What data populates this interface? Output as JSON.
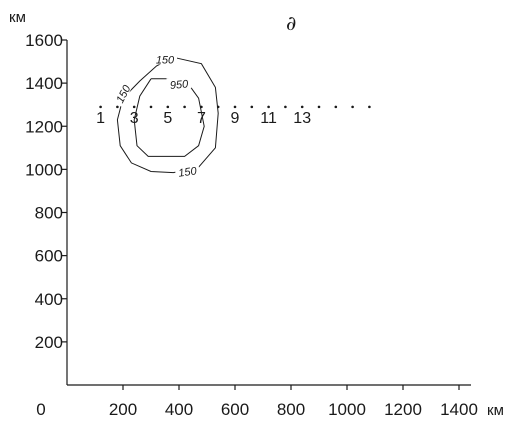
{
  "chart_data": {
    "type": "scatter",
    "title": "",
    "panel_label": "∂",
    "x_unit": "км",
    "y_unit": "км",
    "xlim": [
      0,
      1400
    ],
    "ylim": [
      0,
      1600
    ],
    "x_ticks": [
      {
        "value": 0,
        "label": "0"
      },
      {
        "value": 200,
        "label": "200"
      },
      {
        "value": 400,
        "label": "400"
      },
      {
        "value": 600,
        "label": "600"
      },
      {
        "value": 800,
        "label": "800"
      },
      {
        "value": 1000,
        "label": "1000"
      },
      {
        "value": 1200,
        "label": "1200"
      },
      {
        "value": 1400,
        "label": "1400"
      }
    ],
    "y_ticks": [
      {
        "value": 200,
        "label": "200"
      },
      {
        "value": 400,
        "label": "400"
      },
      {
        "value": 600,
        "label": "600"
      },
      {
        "value": 800,
        "label": "800"
      },
      {
        "value": 1000,
        "label": "1000"
      },
      {
        "value": 1200,
        "label": "1200"
      },
      {
        "value": 1400,
        "label": "1400"
      },
      {
        "value": 1600,
        "label": "1600"
      }
    ],
    "grid": false,
    "points": [
      {
        "x": 120,
        "y": 1160,
        "label": "1"
      },
      {
        "x": 180,
        "y": 1160,
        "label": ""
      },
      {
        "x": 240,
        "y": 1160,
        "label": "3"
      },
      {
        "x": 300,
        "y": 1160,
        "label": ""
      },
      {
        "x": 360,
        "y": 1160,
        "label": "5"
      },
      {
        "x": 420,
        "y": 1160,
        "label": ""
      },
      {
        "x": 480,
        "y": 1160,
        "label": "7"
      },
      {
        "x": 540,
        "y": 1160,
        "label": ""
      },
      {
        "x": 600,
        "y": 1160,
        "label": "9"
      },
      {
        "x": 660,
        "y": 1160,
        "label": ""
      },
      {
        "x": 720,
        "y": 1160,
        "label": "11"
      },
      {
        "x": 780,
        "y": 1160,
        "label": ""
      },
      {
        "x": 840,
        "y": 1160,
        "label": "13"
      },
      {
        "x": 900,
        "y": 1160,
        "label": ""
      },
      {
        "x": 960,
        "y": 1160,
        "label": ""
      },
      {
        "x": 1020,
        "y": 1160,
        "label": ""
      },
      {
        "x": 1080,
        "y": 1160,
        "label": ""
      }
    ],
    "contours": [
      {
        "level": "150",
        "points": [
          [
            380,
            1520
          ],
          [
            480,
            1490
          ],
          [
            530,
            1380
          ],
          [
            540,
            1260
          ],
          [
            530,
            1100
          ],
          [
            470,
            1010
          ],
          [
            380,
            985
          ],
          [
            300,
            990
          ],
          [
            230,
            1030
          ],
          [
            190,
            1110
          ],
          [
            180,
            1230
          ],
          [
            200,
            1330
          ],
          [
            260,
            1410
          ],
          [
            320,
            1480
          ],
          [
            380,
            1520
          ]
        ],
        "labels": [
          {
            "x": 350,
            "y": 1510,
            "rot": 0
          },
          {
            "x": 200,
            "y": 1350,
            "rot": -63
          },
          {
            "x": 430,
            "y": 990,
            "rot": -8
          }
        ]
      },
      {
        "level": "950",
        "points": [
          [
            300,
            1420
          ],
          [
            420,
            1420
          ],
          [
            470,
            1330
          ],
          [
            490,
            1200
          ],
          [
            470,
            1110
          ],
          [
            420,
            1060
          ],
          [
            290,
            1060
          ],
          [
            250,
            1110
          ],
          [
            240,
            1230
          ],
          [
            260,
            1340
          ],
          [
            300,
            1420
          ]
        ],
        "labels": [
          {
            "x": 400,
            "y": 1395,
            "rot": -5
          }
        ]
      }
    ]
  }
}
